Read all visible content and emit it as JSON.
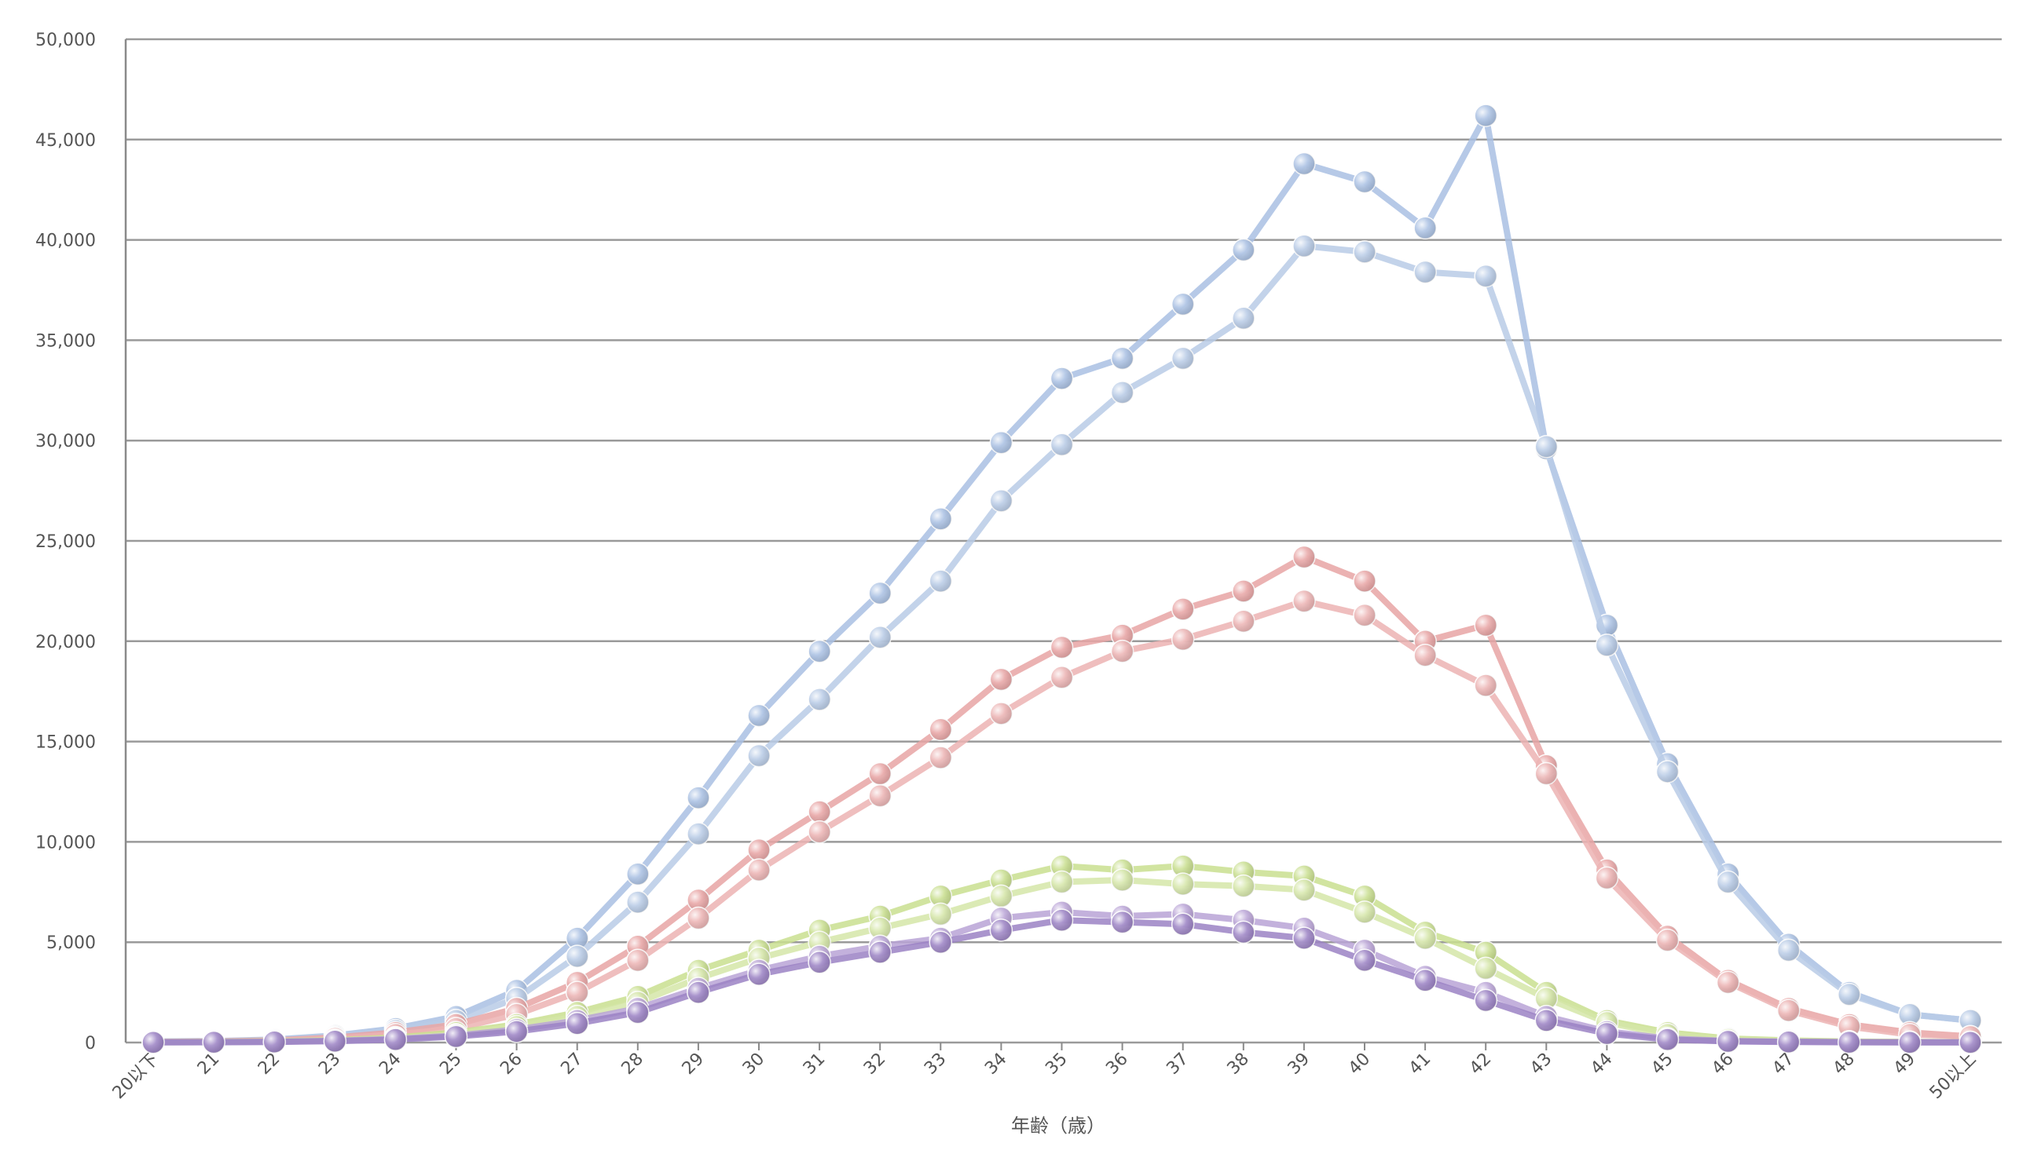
{
  "chart_data": {
    "type": "line",
    "title": "",
    "xlabel": "年齢（歳）",
    "ylabel": "",
    "ylim": [
      0,
      50000
    ],
    "yticks": [
      0,
      5000,
      10000,
      15000,
      20000,
      25000,
      30000,
      35000,
      40000,
      45000,
      50000
    ],
    "ytick_labels": [
      "0",
      "5,000",
      "10,000",
      "15,000",
      "20,000",
      "25,000",
      "30,000",
      "35,000",
      "40,000",
      "45,000",
      "50,000"
    ],
    "grid": true,
    "legend": "none",
    "categories": [
      "20以下",
      "21",
      "22",
      "23",
      "24",
      "25",
      "26",
      "27",
      "28",
      "29",
      "30",
      "31",
      "32",
      "33",
      "34",
      "35",
      "36",
      "37",
      "38",
      "39",
      "40",
      "41",
      "42",
      "43",
      "44",
      "45",
      "46",
      "47",
      "48",
      "49",
      "50以上"
    ],
    "series": [
      {
        "color": "#a9c0e3",
        "values": [
          50,
          70,
          150,
          350,
          700,
          1300,
          2600,
          5200,
          8400,
          12200,
          16300,
          19500,
          22400,
          26100,
          29900,
          33100,
          34100,
          36800,
          39500,
          43800,
          42900,
          40600,
          46200,
          29600,
          20800,
          13900,
          8400,
          4900,
          2500,
          1400,
          1100
        ]
      },
      {
        "color": "#b8cbe6",
        "values": [
          40,
          60,
          120,
          300,
          600,
          1100,
          2200,
          4300,
          7000,
          10400,
          14300,
          17100,
          20200,
          23000,
          27000,
          29800,
          32400,
          34100,
          36100,
          39700,
          39400,
          38400,
          38200,
          29700,
          19800,
          13500,
          8000,
          4600,
          2400,
          1400,
          1100
        ]
      },
      {
        "color": "#e8a4a4",
        "values": [
          30,
          50,
          100,
          250,
          500,
          900,
          1700,
          3000,
          4800,
          7100,
          9600,
          11500,
          13400,
          15600,
          18100,
          19700,
          20300,
          21600,
          22500,
          24200,
          23000,
          20000,
          20800,
          13800,
          8600,
          5300,
          3100,
          1700,
          900,
          500,
          300
        ]
      },
      {
        "color": "#ecb3b3",
        "values": [
          25,
          40,
          80,
          200,
          400,
          700,
          1400,
          2500,
          4100,
          6200,
          8600,
          10500,
          12300,
          14200,
          16400,
          18200,
          19500,
          20100,
          21000,
          22000,
          21300,
          19300,
          17800,
          13400,
          8200,
          5100,
          3000,
          1600,
          800,
          400,
          300
        ]
      },
      {
        "color": "#c9df8f",
        "values": [
          20,
          30,
          60,
          120,
          250,
          500,
          900,
          1500,
          2300,
          3600,
          4600,
          5600,
          6300,
          7300,
          8100,
          8800,
          8600,
          8800,
          8500,
          8300,
          7300,
          5500,
          4500,
          2500,
          1100,
          500,
          200,
          100,
          50,
          30,
          20
        ]
      },
      {
        "color": "#d5e6a8",
        "values": [
          15,
          25,
          50,
          100,
          200,
          400,
          800,
          1300,
          2000,
          3200,
          4200,
          5000,
          5700,
          6400,
          7300,
          8000,
          8100,
          7900,
          7800,
          7600,
          6500,
          5200,
          3700,
          2200,
          1000,
          400,
          150,
          80,
          40,
          20,
          15
        ]
      },
      {
        "color": "#b9a3d6",
        "values": [
          15,
          20,
          40,
          90,
          180,
          350,
          650,
          1100,
          1700,
          2700,
          3600,
          4300,
          4800,
          5200,
          6200,
          6500,
          6300,
          6400,
          6100,
          5700,
          4600,
          3300,
          2500,
          1300,
          550,
          200,
          80,
          40,
          20,
          10,
          10
        ]
      },
      {
        "color": "#9b82c4",
        "values": [
          10,
          15,
          30,
          70,
          150,
          300,
          550,
          950,
          1500,
          2500,
          3400,
          4000,
          4500,
          5000,
          5600,
          6100,
          6000,
          5900,
          5500,
          5200,
          4100,
          3100,
          2100,
          1100,
          450,
          150,
          60,
          30,
          15,
          8,
          8
        ]
      }
    ]
  }
}
